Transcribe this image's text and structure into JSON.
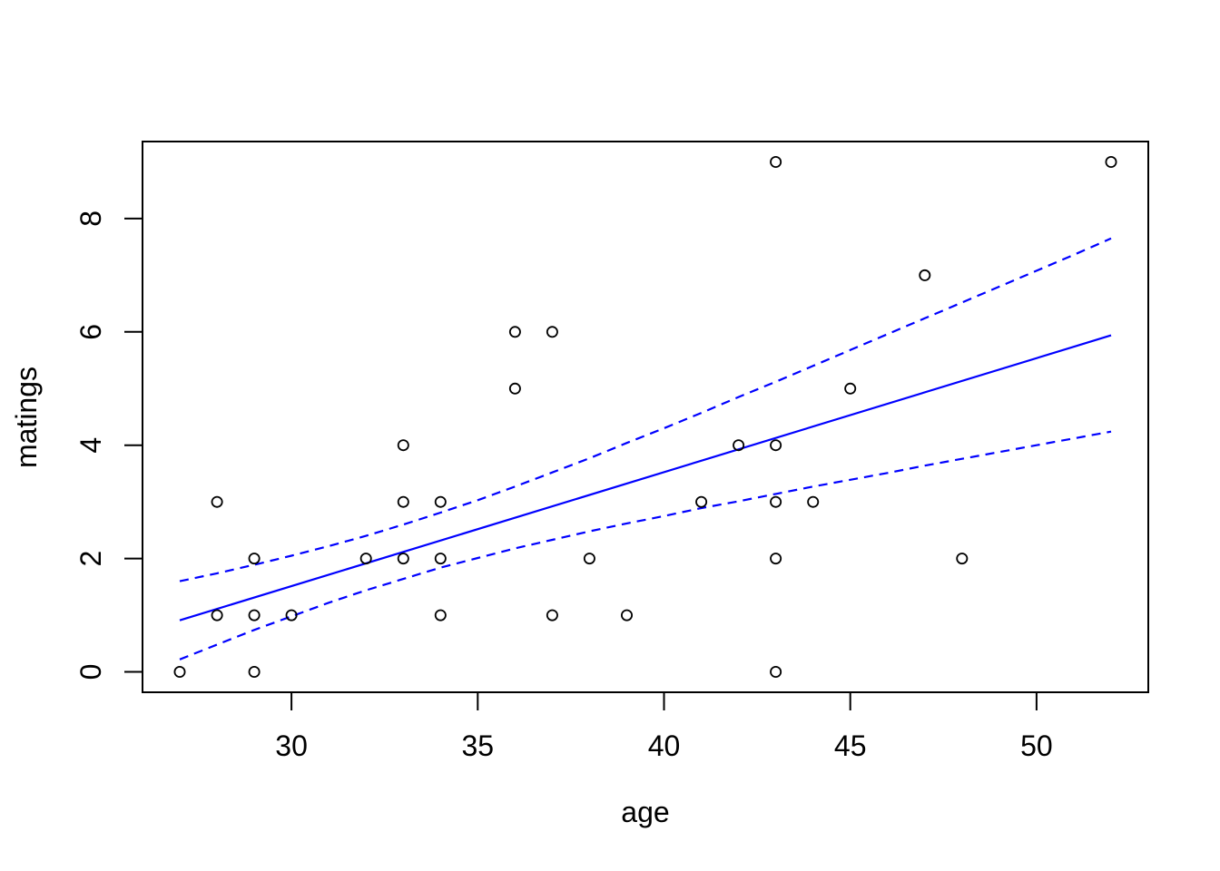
{
  "figure": {
    "background": "#ffffff"
  },
  "chart_data": {
    "type": "scatter",
    "title": "",
    "xlabel": "age",
    "ylabel": "matings",
    "x_ticks": [
      30,
      35,
      40,
      45,
      50
    ],
    "y_ticks": [
      0,
      2,
      4,
      6,
      8
    ],
    "xlim": [
      26,
      53
    ],
    "ylim": [
      -0.36,
      9.36
    ],
    "grid": false,
    "legend_position": "none",
    "point_color": "#000000",
    "line_color": "#0000ff",
    "points": [
      [
        27,
        0
      ],
      [
        28,
        1
      ],
      [
        28,
        3
      ],
      [
        29,
        0
      ],
      [
        29,
        1
      ],
      [
        29,
        2
      ],
      [
        30,
        1
      ],
      [
        32,
        2
      ],
      [
        33,
        2
      ],
      [
        33,
        3
      ],
      [
        33,
        4
      ],
      [
        34,
        1
      ],
      [
        34,
        2
      ],
      [
        34,
        3
      ],
      [
        36,
        5
      ],
      [
        36,
        6
      ],
      [
        37,
        1
      ],
      [
        37,
        6
      ],
      [
        38,
        2
      ],
      [
        39,
        1
      ],
      [
        41,
        3
      ],
      [
        42,
        4
      ],
      [
        43,
        0
      ],
      [
        43,
        2
      ],
      [
        43,
        3
      ],
      [
        43,
        4
      ],
      [
        43,
        9
      ],
      [
        44,
        3
      ],
      [
        45,
        5
      ],
      [
        47,
        7
      ],
      [
        48,
        2
      ],
      [
        52,
        9
      ]
    ],
    "fit_line": {
      "style": "solid",
      "ages": [
        27,
        52
      ],
      "values": [
        0.91,
        5.94
      ]
    },
    "confidence_band": {
      "style": "dashed",
      "ages": [
        27,
        28,
        29,
        30,
        31,
        32,
        33,
        34,
        35,
        36,
        37,
        38,
        39,
        40,
        41,
        42,
        43,
        44,
        45,
        46,
        47,
        48,
        49,
        50,
        51,
        52
      ],
      "upper": [
        1.6,
        1.74,
        1.89,
        2.05,
        2.22,
        2.4,
        2.6,
        2.81,
        3.03,
        3.27,
        3.52,
        3.77,
        4.04,
        4.3,
        4.57,
        4.85,
        5.12,
        5.4,
        5.68,
        5.96,
        6.24,
        6.52,
        6.8,
        7.08,
        7.36,
        7.65
      ],
      "lower": [
        0.22,
        0.48,
        0.74,
        0.98,
        1.22,
        1.44,
        1.64,
        1.84,
        2.01,
        2.18,
        2.33,
        2.48,
        2.62,
        2.75,
        2.89,
        3.01,
        3.14,
        3.27,
        3.39,
        3.51,
        3.64,
        3.76,
        3.88,
        4.0,
        4.12,
        4.24
      ]
    }
  }
}
